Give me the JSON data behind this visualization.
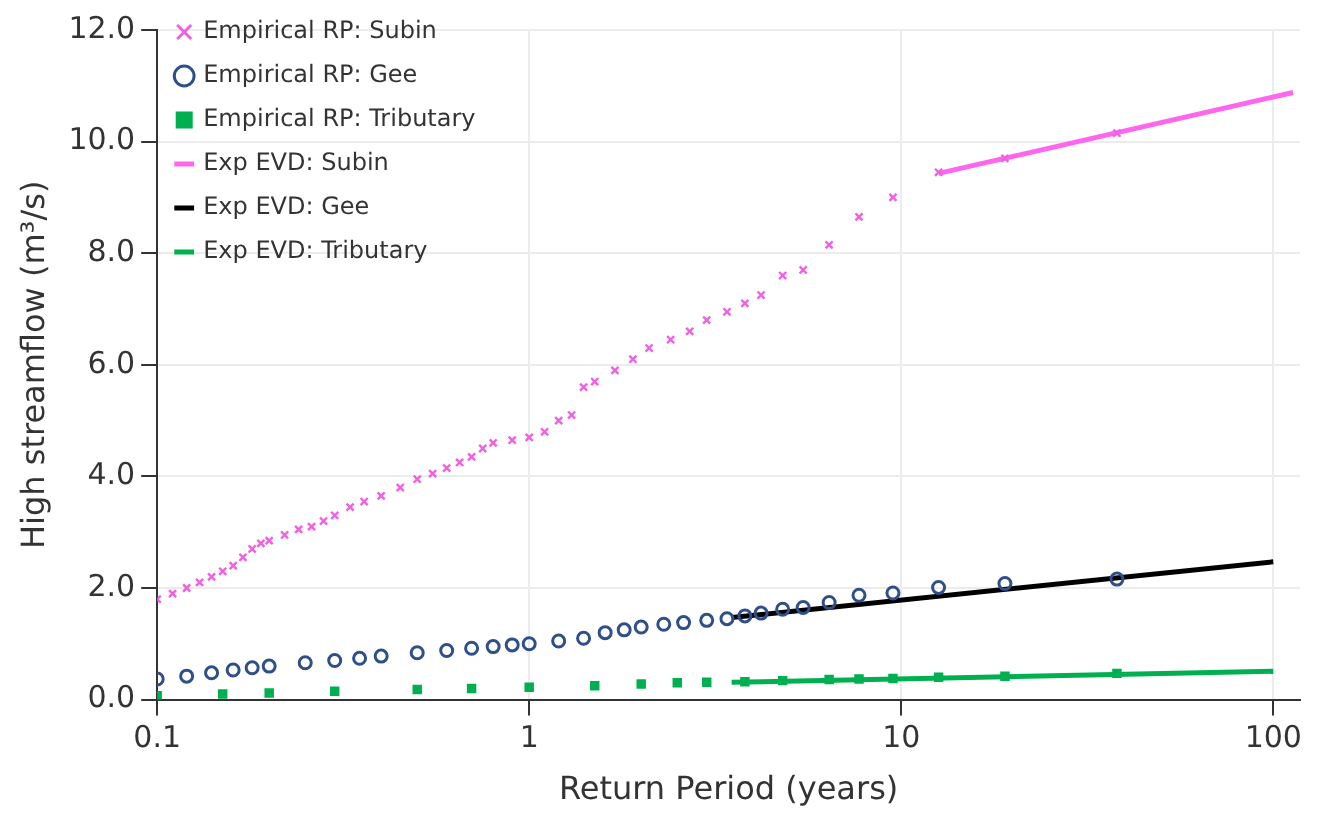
{
  "chart_data": {
    "type": "scatter",
    "xlabel": "Return Period (years)",
    "ylabel": "High streamflow (m³/s)",
    "log": "x",
    "xlim": [
      0.1,
      118
    ],
    "xticks": [
      0.1,
      1,
      10,
      100
    ],
    "ylim": [
      0,
      12
    ],
    "yticks": [
      {
        "value": 0,
        "label": "0.0"
      },
      {
        "value": 2,
        "label": "2.0"
      },
      {
        "value": 4,
        "label": "4.0"
      },
      {
        "value": 6,
        "label": "6.0"
      },
      {
        "value": 8,
        "label": "8.0"
      },
      {
        "value": 10,
        "label": "10.0"
      },
      {
        "value": 12,
        "label": "12.0"
      }
    ],
    "grid": true,
    "legend": "top left",
    "series": [
      {
        "name": "Empirical RP: Subin",
        "type": "scatter",
        "marker": "cross",
        "color": "#f060e0",
        "x": [
          0.1,
          0.11,
          0.12,
          0.13,
          0.14,
          0.15,
          0.16,
          0.17,
          0.18,
          0.19,
          0.2,
          0.22,
          0.24,
          0.26,
          0.28,
          0.3,
          0.33,
          0.36,
          0.4,
          0.45,
          0.5,
          0.55,
          0.6,
          0.65,
          0.7,
          0.75,
          0.8,
          0.9,
          1.0,
          1.1,
          1.2,
          1.3,
          1.4,
          1.5,
          1.7,
          1.9,
          2.1,
          2.4,
          2.7,
          3.0,
          3.4,
          3.8,
          4.2,
          4.8,
          5.45,
          6.4,
          7.7,
          9.5,
          12.6,
          19,
          38
        ],
        "values": [
          1.8,
          1.9,
          2.0,
          2.1,
          2.2,
          2.3,
          2.4,
          2.55,
          2.7,
          2.8,
          2.85,
          2.95,
          3.05,
          3.1,
          3.2,
          3.3,
          3.45,
          3.55,
          3.65,
          3.8,
          3.95,
          4.05,
          4.15,
          4.25,
          4.35,
          4.5,
          4.6,
          4.65,
          4.7,
          4.8,
          5.0,
          5.1,
          5.6,
          5.7,
          5.9,
          6.1,
          6.3,
          6.45,
          6.6,
          6.8,
          6.95,
          7.1,
          7.25,
          7.6,
          7.7,
          8.15,
          8.65,
          9.0,
          9.45,
          9.7,
          10.15
        ]
      },
      {
        "name": "Empirical RP: Gee",
        "type": "scatter",
        "marker": "circle",
        "color": "#2f4f8a",
        "x": [
          0.1,
          0.12,
          0.14,
          0.16,
          0.18,
          0.2,
          0.25,
          0.3,
          0.35,
          0.4,
          0.5,
          0.6,
          0.7,
          0.8,
          0.9,
          1.0,
          1.2,
          1.4,
          1.6,
          1.8,
          2.0,
          2.3,
          2.6,
          3.0,
          3.4,
          3.8,
          4.2,
          4.8,
          5.45,
          6.4,
          7.7,
          9.5,
          12.6,
          19,
          38
        ],
        "values": [
          0.37,
          0.42,
          0.48,
          0.53,
          0.57,
          0.6,
          0.66,
          0.7,
          0.74,
          0.78,
          0.84,
          0.88,
          0.92,
          0.95,
          0.98,
          1.0,
          1.05,
          1.1,
          1.2,
          1.25,
          1.3,
          1.35,
          1.38,
          1.42,
          1.45,
          1.5,
          1.55,
          1.62,
          1.65,
          1.74,
          1.87,
          1.91,
          2.01,
          2.08,
          2.16
        ]
      },
      {
        "name": "Empirical RP: Tributary",
        "type": "scatter",
        "marker": "square",
        "color": "#00b050",
        "x": [
          0.1,
          0.15,
          0.2,
          0.3,
          0.5,
          0.7,
          1,
          1.5,
          2,
          2.5,
          3,
          3.8,
          4.8,
          6.4,
          7.7,
          9.5,
          12.6,
          19,
          38
        ],
        "values": [
          0.07,
          0.1,
          0.12,
          0.15,
          0.18,
          0.2,
          0.22,
          0.25,
          0.28,
          0.3,
          0.31,
          0.32,
          0.34,
          0.36,
          0.37,
          0.38,
          0.4,
          0.42,
          0.47
        ]
      },
      {
        "name": "Exp EVD: Subin",
        "type": "line",
        "marker": "none",
        "color": "#ff66ee",
        "x": [
          12.6,
          113
        ],
        "values": [
          9.43,
          10.88
        ]
      },
      {
        "name": "Exp EVD: Gee",
        "type": "line",
        "marker": "none",
        "color": "#000000",
        "x": [
          3.5,
          100
        ],
        "values": [
          1.47,
          2.47
        ]
      },
      {
        "name": "Exp EVD: Tributary",
        "type": "line",
        "marker": "none",
        "color": "#00b050",
        "x": [
          3.5,
          100
        ],
        "values": [
          0.31,
          0.51
        ]
      }
    ]
  }
}
